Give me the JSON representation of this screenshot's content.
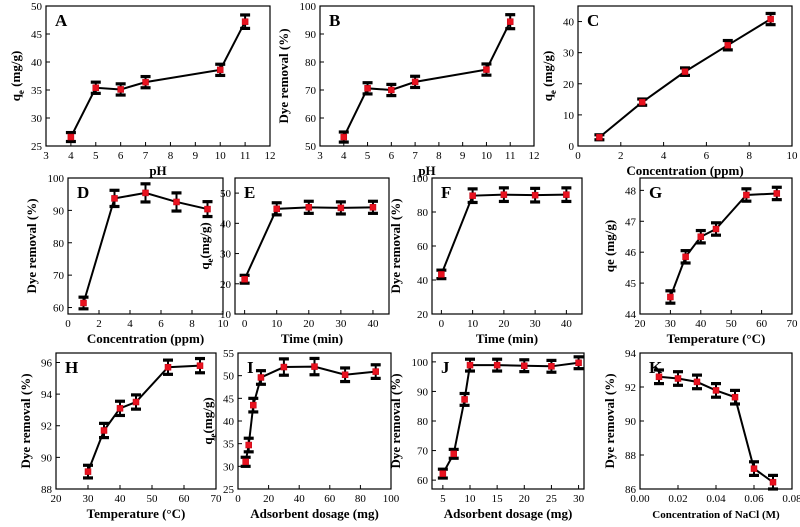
{
  "chart_data": [
    {
      "id": "A",
      "type": "line",
      "panel_label": "A",
      "xlabel": "pH",
      "ylabel": "q",
      "ylabel_sub": "e",
      "ylabel_tail": " (mg/g)",
      "xlim": [
        3,
        12
      ],
      "ylim": [
        25,
        50
      ],
      "xticks": [
        3,
        4,
        5,
        6,
        7,
        8,
        9,
        10,
        11,
        12
      ],
      "yticks": [
        25,
        30,
        35,
        40,
        45,
        50
      ],
      "x": [
        4,
        5,
        6,
        7,
        10,
        11
      ],
      "y": [
        26.6,
        35.4,
        35.1,
        36.4,
        38.6,
        47.2
      ],
      "err": [
        0.8,
        1.0,
        1.0,
        1.0,
        1.0,
        1.2
      ]
    },
    {
      "id": "B",
      "type": "line",
      "panel_label": "B",
      "xlabel": "pH",
      "ylabel": "Dye removal (%)",
      "xlim": [
        3,
        12
      ],
      "ylim": [
        50,
        100
      ],
      "xticks": [
        3,
        4,
        5,
        6,
        7,
        8,
        9,
        10,
        11,
        12
      ],
      "yticks": [
        50,
        60,
        70,
        80,
        90,
        100
      ],
      "x": [
        4,
        5,
        6,
        7,
        10,
        11
      ],
      "y": [
        53.2,
        70.6,
        70.0,
        72.9,
        77.3,
        94.4
      ],
      "err": [
        1.8,
        2.0,
        2.0,
        2.0,
        2.0,
        2.5
      ]
    },
    {
      "id": "C",
      "type": "line",
      "panel_label": "C",
      "xlabel": "Concentration (ppm)",
      "ylabel": "q",
      "ylabel_sub": "e",
      "ylabel_tail": " (mg/g)",
      "xlim": [
        0,
        10
      ],
      "ylim": [
        0,
        45
      ],
      "xticks": [
        0,
        2,
        4,
        6,
        8,
        10
      ],
      "yticks": [
        0,
        10,
        20,
        30,
        40
      ],
      "x": [
        1,
        3,
        5,
        7,
        9
      ],
      "y": [
        2.8,
        14.1,
        23.9,
        32.4,
        40.8
      ],
      "err": [
        0.8,
        1.0,
        1.2,
        1.5,
        1.8
      ]
    },
    {
      "id": "D",
      "type": "line",
      "panel_label": "D",
      "xlabel": "Concentration (ppm)",
      "ylabel": "Dye removal (%)",
      "xlim": [
        0,
        10
      ],
      "ylim": [
        58,
        100
      ],
      "xticks": [
        0,
        2,
        4,
        6,
        8,
        10
      ],
      "yticks": [
        60,
        70,
        80,
        90,
        100
      ],
      "x": [
        1,
        3,
        5,
        7,
        9
      ],
      "y": [
        61.4,
        93.7,
        95.4,
        92.6,
        90.4
      ],
      "err": [
        1.8,
        2.5,
        2.8,
        2.8,
        2.3
      ]
    },
    {
      "id": "E",
      "type": "line",
      "panel_label": "E",
      "xlabel": "Time (min)",
      "ylabel": "q",
      "ylabel_sub": "e",
      "ylabel_tail": "(mg/g)",
      "xlim": [
        -3,
        45
      ],
      "ylim": [
        10,
        55
      ],
      "xticks": [
        0,
        10,
        20,
        30,
        40
      ],
      "yticks": [
        10,
        20,
        30,
        40,
        50
      ],
      "x": [
        0,
        10,
        20,
        30,
        40
      ],
      "y": [
        21.5,
        44.8,
        45.3,
        45.1,
        45.3
      ],
      "err": [
        1.3,
        2.0,
        2.0,
        2.0,
        2.0
      ]
    },
    {
      "id": "F",
      "type": "line",
      "panel_label": "F",
      "xlabel": "Time (min)",
      "ylabel": "Dye removal (%)",
      "xlim": [
        -3,
        45
      ],
      "ylim": [
        20,
        100
      ],
      "xticks": [
        0,
        10,
        20,
        30,
        40
      ],
      "yticks": [
        20,
        40,
        60,
        80,
        100
      ],
      "x": [
        0,
        10,
        20,
        30,
        40
      ],
      "y": [
        43.3,
        89.6,
        90.2,
        89.9,
        90.2
      ],
      "err": [
        2.5,
        4.0,
        4.0,
        4.0,
        4.0
      ]
    },
    {
      "id": "G",
      "type": "line",
      "panel_label": "G",
      "xlabel": "Temperature (°C)",
      "ylabel": "qe (mg/g)",
      "xlim": [
        20,
        70
      ],
      "ylim": [
        44,
        48.4
      ],
      "xticks": [
        20,
        30,
        40,
        50,
        60,
        70
      ],
      "yticks": [
        44,
        45,
        46,
        47,
        48
      ],
      "x": [
        30,
        35,
        40,
        45,
        55,
        65
      ],
      "y": [
        44.55,
        45.85,
        46.5,
        46.75,
        47.85,
        47.9
      ],
      "err": [
        0.2,
        0.2,
        0.2,
        0.2,
        0.2,
        0.2
      ]
    },
    {
      "id": "H",
      "type": "line",
      "panel_label": "H",
      "xlabel": "Temperature (°C)",
      "ylabel": "Dye removal (%)",
      "xlim": [
        20,
        70
      ],
      "ylim": [
        88,
        96.6
      ],
      "xticks": [
        20,
        30,
        40,
        50,
        60,
        70
      ],
      "yticks": [
        88,
        90,
        92,
        94,
        96
      ],
      "x": [
        30,
        35,
        40,
        45,
        55,
        65
      ],
      "y": [
        89.1,
        91.7,
        93.1,
        93.5,
        95.7,
        95.8
      ],
      "err": [
        0.4,
        0.45,
        0.45,
        0.45,
        0.45,
        0.45
      ]
    },
    {
      "id": "I",
      "type": "line",
      "panel_label": "I",
      "xlabel": "Adsorbent dosage (mg)",
      "ylabel": "q",
      "ylabel_sub": "e",
      "ylabel_tail": "(mg/g)",
      "xlim": [
        0,
        100
      ],
      "ylim": [
        25,
        55
      ],
      "xticks": [
        0,
        20,
        40,
        60,
        80,
        100
      ],
      "yticks": [
        25,
        30,
        35,
        40,
        45,
        50,
        55
      ],
      "x": [
        5,
        7,
        10,
        15,
        30,
        50,
        70,
        90
      ],
      "y": [
        31.0,
        34.7,
        43.5,
        49.6,
        51.9,
        52.0,
        50.2,
        50.9
      ],
      "err": [
        1.0,
        1.5,
        1.5,
        1.5,
        1.8,
        1.8,
        1.5,
        1.5
      ]
    },
    {
      "id": "J",
      "type": "line",
      "panel_label": "J",
      "xlabel": "Adsorbent dosage (mg)",
      "ylabel": "Dye removal (%)",
      "xlim": [
        3,
        31
      ],
      "ylim": [
        57,
        103
      ],
      "xticks": [
        5,
        10,
        15,
        20,
        25,
        30
      ],
      "yticks": [
        60,
        70,
        80,
        90,
        100
      ],
      "x": [
        5,
        7,
        9,
        10,
        15,
        20,
        25,
        30
      ],
      "y": [
        62.2,
        68.9,
        87.3,
        98.9,
        98.9,
        98.7,
        98.5,
        99.7
      ],
      "err": [
        1.5,
        1.5,
        2.0,
        2.0,
        2.0,
        2.0,
        2.0,
        2.0
      ]
    },
    {
      "id": "K",
      "type": "line",
      "panel_label": "K",
      "xlabel": "Concentration of NaCl (M)",
      "ylabel": "Dye removal (%)",
      "xlim": [
        0,
        0.08
      ],
      "ylim": [
        86,
        94
      ],
      "xticks": [
        0.0,
        0.02,
        0.04,
        0.06,
        0.08
      ],
      "xtick_labels": [
        "0.00",
        "0.02",
        "0.04",
        "0.06",
        "0.08"
      ],
      "yticks": [
        86,
        88,
        90,
        92,
        94
      ],
      "x": [
        0.01,
        0.02,
        0.03,
        0.04,
        0.05,
        0.06,
        0.07
      ],
      "y": [
        92.6,
        92.5,
        92.3,
        91.8,
        91.4,
        87.2,
        86.4
      ],
      "err": [
        0.4,
        0.4,
        0.4,
        0.4,
        0.4,
        0.4,
        0.4
      ]
    }
  ]
}
